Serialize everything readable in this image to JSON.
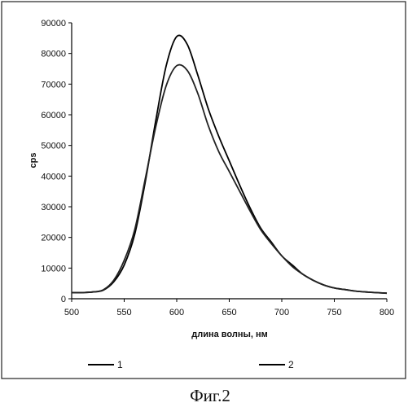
{
  "chart_data": {
    "type": "line",
    "xlabel": "длина волны, нм",
    "ylabel": "cps",
    "xlim": [
      500,
      800
    ],
    "ylim": [
      0,
      90000
    ],
    "xticks": [
      "500",
      "550",
      "600",
      "650",
      "700",
      "750",
      "800"
    ],
    "yticks": [
      "0",
      "10000",
      "20000",
      "30000",
      "40000",
      "50000",
      "60000",
      "70000",
      "80000",
      "90000"
    ],
    "grid": false,
    "legend_position": "bottom",
    "x": [
      500,
      510,
      520,
      530,
      540,
      550,
      560,
      570,
      580,
      590,
      600,
      610,
      620,
      630,
      640,
      650,
      660,
      670,
      680,
      690,
      700,
      710,
      720,
      730,
      740,
      750,
      760,
      770,
      780,
      790,
      800
    ],
    "series": [
      {
        "name": "1",
        "color": "#000000",
        "values": [
          2000,
          2000,
          2200,
          2800,
          5500,
          11000,
          21000,
          38000,
          58000,
          76000,
          85500,
          83000,
          73000,
          62000,
          53000,
          45000,
          37000,
          29500,
          23000,
          18500,
          14000,
          11000,
          8000,
          6000,
          4500,
          3500,
          3000,
          2500,
          2200,
          2000,
          1800
        ]
      },
      {
        "name": "2",
        "color": "#222222",
        "values": [
          2000,
          2000,
          2200,
          2900,
          6000,
          12500,
          22500,
          39000,
          56000,
          69500,
          76000,
          74500,
          67000,
          56500,
          48000,
          41500,
          35000,
          28500,
          22500,
          18000,
          14000,
          10500,
          8000,
          6000,
          4500,
          3500,
          3000,
          2500,
          2200,
          2000,
          1800
        ]
      }
    ],
    "caption": "Фиг.2"
  }
}
